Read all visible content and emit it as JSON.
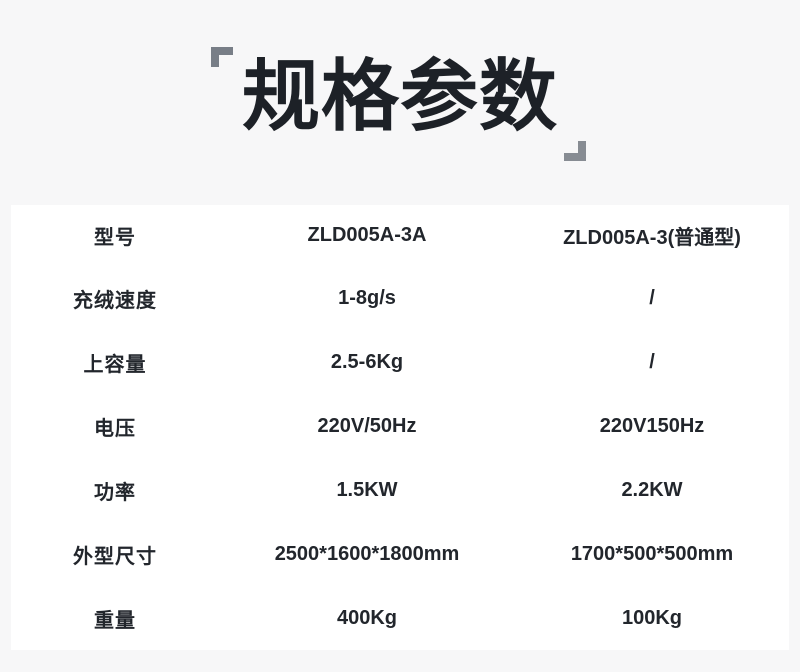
{
  "page": {
    "background": "#f7f7f8"
  },
  "title": {
    "text": "规格参数",
    "color": "#1d2127",
    "bracket_color": "#7b8189"
  },
  "table": {
    "colors": {
      "header_bg": "#c2c5d2",
      "row_light_bg": "#efefef",
      "row_dark_bg": "#d2d2d2",
      "gap": "#ffffff",
      "text": "#22262c"
    },
    "header": {
      "label": "型号",
      "col1": "ZLD005A-3A",
      "col2": "ZLD005A-3(普通型)"
    },
    "rows": [
      {
        "label": "充绒速度",
        "col1": "1-8g/s",
        "col2": "/"
      },
      {
        "label": "上容量",
        "col1": "2.5-6Kg",
        "col2": "/"
      },
      {
        "label": "电压",
        "col1": "220V/50Hz",
        "col2": "220V150Hz"
      },
      {
        "label": "功率",
        "col1": "1.5KW",
        "col2": "2.2KW"
      },
      {
        "label": "外型尺寸",
        "col1": "2500*1600*1800mm",
        "col2": "1700*500*500mm"
      },
      {
        "label": "重量",
        "col1": "400Kg",
        "col2": "100Kg"
      }
    ]
  }
}
